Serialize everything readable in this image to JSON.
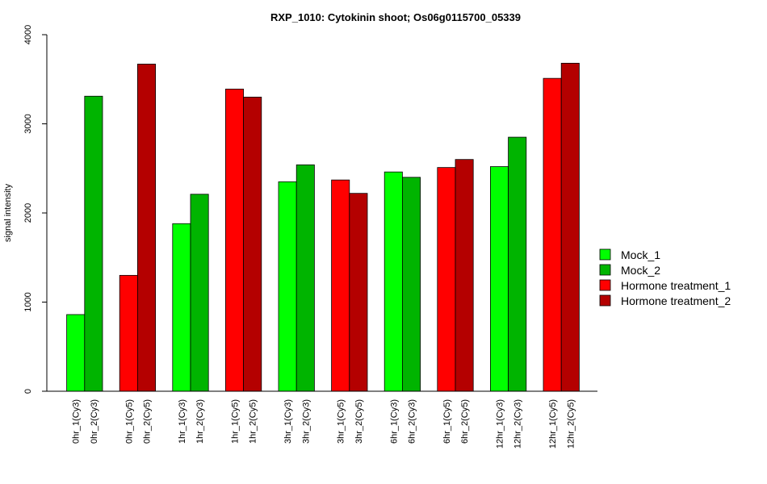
{
  "chart_data": {
    "type": "bar",
    "title": "RXP_1010: Cytokinin shoot; Os06g0115700_05339",
    "xlabel": "",
    "ylabel": "signal intensity",
    "ylim": [
      0,
      4000
    ],
    "yticks": [
      0,
      1000,
      2000,
      3000,
      4000
    ],
    "categories": [
      "0hr_1(Cy3)",
      "0hr_2(Cy3)",
      "0hr_1(Cy5)",
      "0hr_2(Cy5)",
      "1hr_1(Cy3)",
      "1hr_2(Cy3)",
      "1hr_1(Cy5)",
      "1hr_2(Cy5)",
      "3hr_1(Cy3)",
      "3hr_2(Cy3)",
      "3hr_1(Cy5)",
      "3hr_2(Cy5)",
      "6hr_1(Cy3)",
      "6hr_2(Cy3)",
      "6hr_1(Cy5)",
      "6hr_2(Cy5)",
      "12hr_1(Cy3)",
      "12hr_2(Cy3)",
      "12hr_1(Cy5)",
      "12hr_2(Cy5)"
    ],
    "values": [
      860,
      3310,
      1300,
      3670,
      1880,
      2210,
      3390,
      3300,
      2350,
      2540,
      2370,
      2220,
      2460,
      2400,
      2510,
      2600,
      2520,
      2850,
      3510,
      3680
    ],
    "bar_series": [
      0,
      1,
      2,
      3,
      0,
      1,
      2,
      3,
      0,
      1,
      2,
      3,
      0,
      1,
      2,
      3,
      0,
      1,
      2,
      3
    ],
    "series": [
      {
        "name": "Mock_1",
        "color": "#00ff00"
      },
      {
        "name": "Mock_2",
        "color": "#00b400"
      },
      {
        "name": "Hormone treatment_1",
        "color": "#ff0000"
      },
      {
        "name": "Hormone treatment_2",
        "color": "#b40000"
      }
    ],
    "legend_position": "right",
    "grid": false
  }
}
